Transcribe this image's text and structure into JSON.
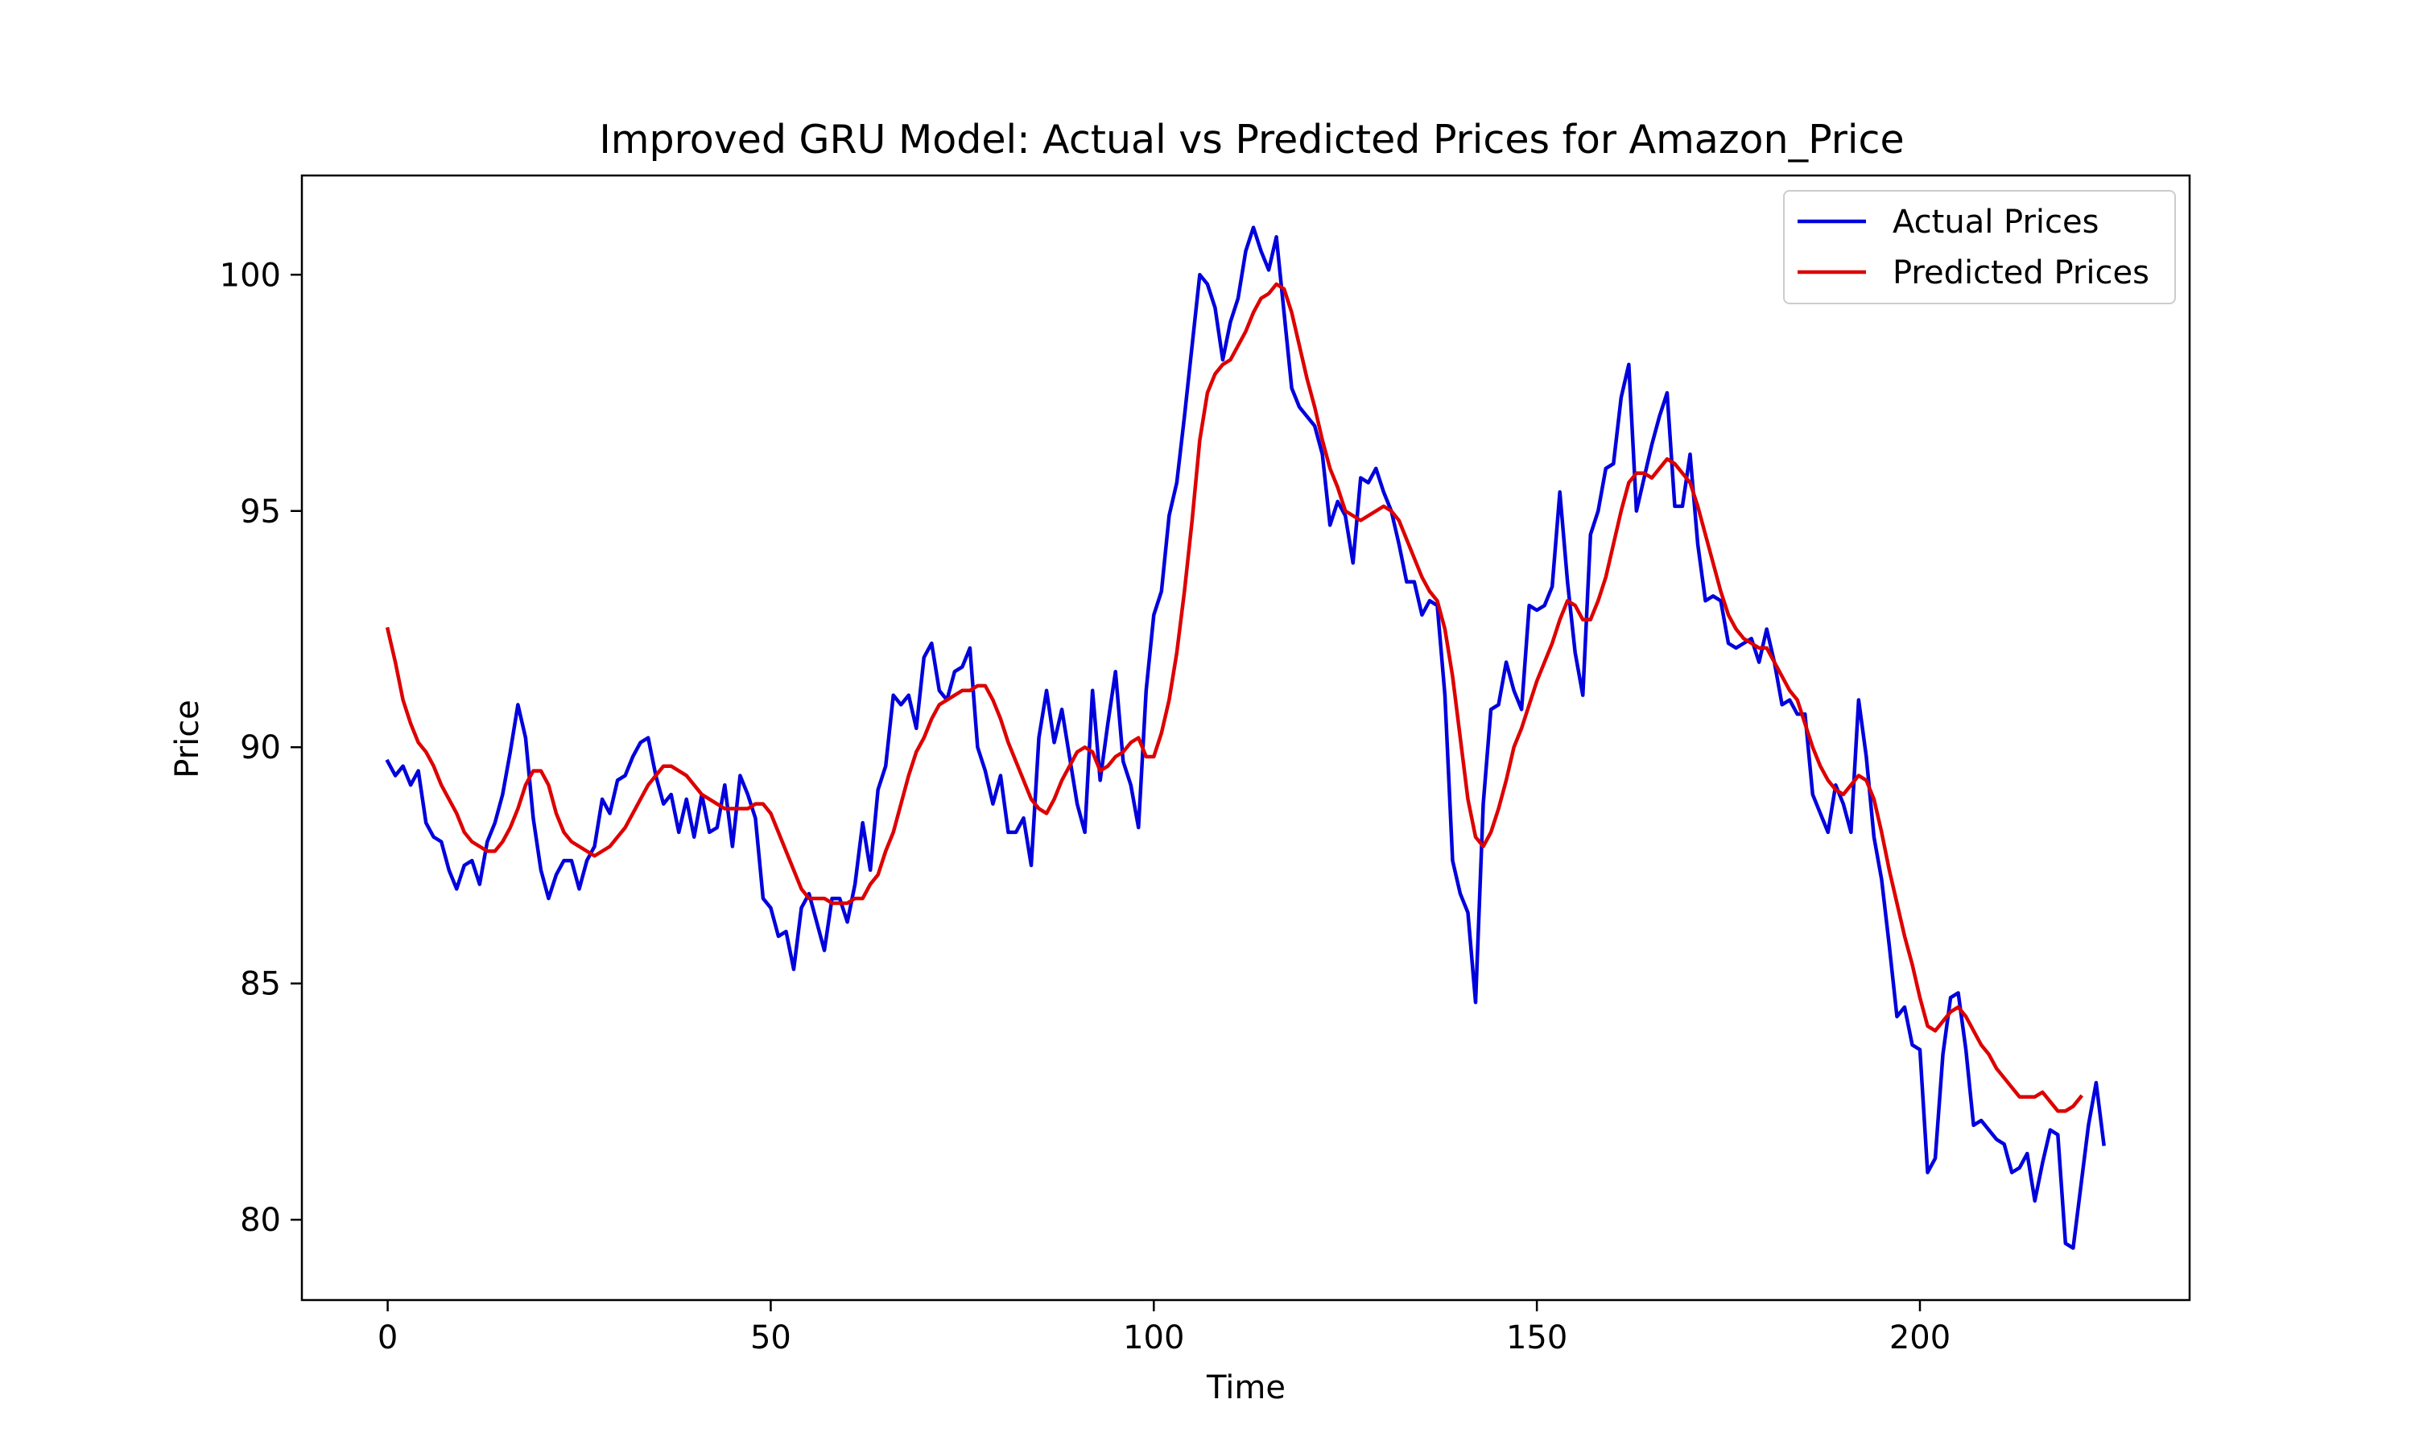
{
  "chart_data": {
    "type": "line",
    "title": "Improved GRU Model: Actual vs Predicted Prices for Amazon_Price",
    "xlabel": "Time",
    "ylabel": "Price",
    "xlim": [
      -11.2,
      235.2
    ],
    "ylim": [
      78.3,
      102.1
    ],
    "xticks": [
      0,
      50,
      100,
      150,
      200
    ],
    "yticks": [
      80,
      85,
      90,
      95,
      100
    ],
    "grid": false,
    "legend_position": "top-right",
    "series": [
      {
        "name": "Actual Prices",
        "color": "#0000dd",
        "values": [
          89.7,
          89.4,
          89.6,
          89.2,
          89.5,
          88.4,
          88.1,
          88.0,
          87.4,
          87.0,
          87.5,
          87.6,
          87.1,
          88.0,
          88.4,
          89.0,
          89.9,
          90.9,
          90.2,
          88.5,
          87.4,
          86.8,
          87.3,
          87.6,
          87.6,
          87.0,
          87.6,
          87.9,
          88.9,
          88.6,
          89.3,
          89.4,
          89.8,
          90.1,
          90.2,
          89.4,
          88.8,
          89.0,
          88.2,
          88.9,
          88.1,
          89.0,
          88.2,
          88.3,
          89.2,
          87.9,
          89.4,
          89.0,
          88.5,
          86.8,
          86.6,
          86.0,
          86.1,
          85.3,
          86.6,
          86.9,
          86.3,
          85.7,
          86.8,
          86.8,
          86.3,
          87.1,
          88.4,
          87.4,
          89.1,
          89.6,
          91.1,
          90.9,
          91.1,
          90.4,
          91.9,
          92.2,
          91.2,
          91.0,
          91.6,
          91.7,
          92.1,
          90.0,
          89.5,
          88.8,
          89.4,
          88.2,
          88.2,
          88.5,
          87.5,
          90.2,
          91.2,
          90.1,
          90.8,
          89.8,
          88.8,
          88.2,
          91.2,
          89.3,
          90.5,
          91.6,
          89.7,
          89.2,
          88.3,
          91.2,
          92.8,
          93.3,
          94.9,
          95.6,
          97.0,
          98.5,
          100.0,
          99.8,
          99.3,
          98.2,
          99.0,
          99.5,
          100.5,
          101.0,
          100.5,
          100.1,
          100.8,
          99.2,
          97.6,
          97.2,
          97.0,
          96.8,
          96.2,
          94.7,
          95.2,
          94.9,
          93.9,
          95.7,
          95.6,
          95.9,
          95.4,
          95.0,
          94.3,
          93.5,
          93.5,
          92.8,
          93.1,
          93.0,
          91.1,
          87.6,
          86.9,
          86.5,
          84.6,
          88.8,
          90.8,
          90.9,
          91.8,
          91.2,
          90.8,
          93.0,
          92.9,
          93.0,
          93.4,
          95.4,
          93.5,
          92.0,
          91.1,
          94.5,
          95.0,
          95.9,
          96.0,
          97.4,
          98.1,
          95.0,
          95.7,
          96.4,
          97.0,
          97.5,
          95.1,
          95.1,
          96.2,
          94.3,
          93.1,
          93.2,
          93.1,
          92.2,
          92.1,
          92.2,
          92.3,
          91.8,
          92.5,
          91.8,
          90.9,
          91.0,
          90.7,
          90.7,
          89.0,
          88.6,
          88.2,
          89.2,
          88.8,
          88.2,
          91.0,
          89.8,
          88.1,
          87.2,
          85.8,
          84.3,
          84.5,
          83.7,
          83.6,
          81.0,
          81.3,
          83.5,
          84.7,
          84.8,
          83.6,
          82.0,
          82.1,
          81.9,
          81.7,
          81.6,
          81.0,
          81.1,
          81.4,
          80.4,
          81.2,
          81.9,
          81.8,
          79.5,
          79.4,
          80.7,
          82.0,
          82.9,
          81.6
        ]
      },
      {
        "name": "Predicted Prices",
        "color": "#dd0000",
        "values": [
          92.5,
          91.8,
          91.0,
          90.5,
          90.1,
          89.9,
          89.6,
          89.2,
          88.9,
          88.6,
          88.2,
          88.0,
          87.9,
          87.8,
          87.8,
          88.0,
          88.3,
          88.7,
          89.2,
          89.5,
          89.5,
          89.2,
          88.6,
          88.2,
          88.0,
          87.9,
          87.8,
          87.7,
          87.8,
          87.9,
          88.1,
          88.3,
          88.6,
          88.9,
          89.2,
          89.4,
          89.6,
          89.6,
          89.5,
          89.4,
          89.2,
          89.0,
          88.9,
          88.8,
          88.7,
          88.7,
          88.7,
          88.7,
          88.8,
          88.8,
          88.6,
          88.2,
          87.8,
          87.4,
          87.0,
          86.8,
          86.8,
          86.8,
          86.7,
          86.7,
          86.7,
          86.8,
          86.8,
          87.1,
          87.3,
          87.8,
          88.2,
          88.8,
          89.4,
          89.9,
          90.2,
          90.6,
          90.9,
          91.0,
          91.1,
          91.2,
          91.2,
          91.3,
          91.3,
          91.0,
          90.6,
          90.1,
          89.7,
          89.3,
          88.9,
          88.7,
          88.6,
          88.9,
          89.3,
          89.6,
          89.9,
          90.0,
          89.9,
          89.5,
          89.6,
          89.8,
          89.9,
          90.1,
          90.2,
          89.8,
          89.8,
          90.3,
          91.0,
          92.0,
          93.3,
          94.8,
          96.5,
          97.5,
          97.9,
          98.1,
          98.2,
          98.5,
          98.8,
          99.2,
          99.5,
          99.6,
          99.8,
          99.7,
          99.2,
          98.5,
          97.8,
          97.2,
          96.5,
          95.9,
          95.5,
          95.0,
          94.9,
          94.8,
          94.9,
          95.0,
          95.1,
          95.0,
          94.8,
          94.4,
          94.0,
          93.6,
          93.3,
          93.1,
          92.5,
          91.5,
          90.2,
          88.9,
          88.1,
          87.9,
          88.2,
          88.7,
          89.3,
          90.0,
          90.4,
          90.9,
          91.4,
          91.8,
          92.2,
          92.7,
          93.1,
          93.0,
          92.7,
          92.7,
          93.1,
          93.6,
          94.3,
          95.0,
          95.6,
          95.8,
          95.8,
          95.7,
          95.9,
          96.1,
          96.0,
          95.8,
          95.6,
          95.1,
          94.5,
          93.9,
          93.3,
          92.8,
          92.5,
          92.3,
          92.2,
          92.1,
          92.1,
          91.8,
          91.5,
          91.2,
          91.0,
          90.5,
          90.0,
          89.6,
          89.3,
          89.1,
          89.0,
          89.2,
          89.4,
          89.3,
          88.9,
          88.2,
          87.4,
          86.7,
          86.0,
          85.4,
          84.7,
          84.1,
          84.0,
          84.2,
          84.4,
          84.5,
          84.3,
          84.0,
          83.7,
          83.5,
          83.2,
          83.0,
          82.8,
          82.6,
          82.6,
          82.6,
          82.7,
          82.5,
          82.3,
          82.3,
          82.4,
          82.6
        ]
      }
    ]
  }
}
